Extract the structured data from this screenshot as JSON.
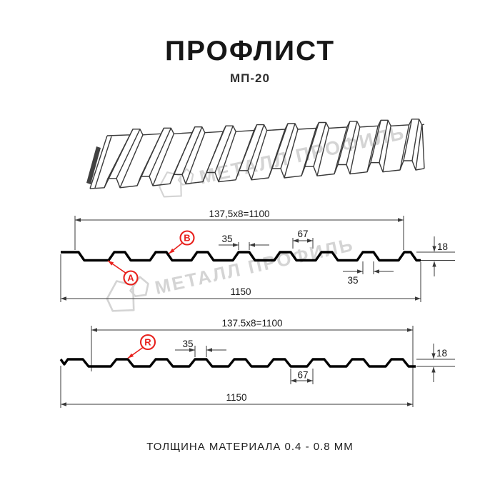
{
  "header": {
    "title": "ПРОФЛИСТ",
    "subtitle": "МП-20"
  },
  "watermark": {
    "text": "МЕТАЛЛ ПРОФИЛЬ"
  },
  "footer": {
    "text": "ТОЛЩИНА МАТЕРИАЛА 0.4 - 0.8 ММ"
  },
  "colors": {
    "accent_red": "#e8211d",
    "line": "#3a3a3a",
    "profile": "#000000",
    "watermark": "#d4d4d4"
  },
  "views": {
    "top": {
      "working_width": "137,5x8=1100",
      "crest_width": "35",
      "valley_width": "67",
      "rib_width": "35",
      "profile_height": "18",
      "overall_width": "1150",
      "label_a": "A",
      "label_b": "B"
    },
    "bottom": {
      "working_width": "137.5x8=1100",
      "crest_width": "35",
      "valley_width": "67",
      "profile_height": "18",
      "overall_width": "1150",
      "label_r": "R"
    }
  }
}
